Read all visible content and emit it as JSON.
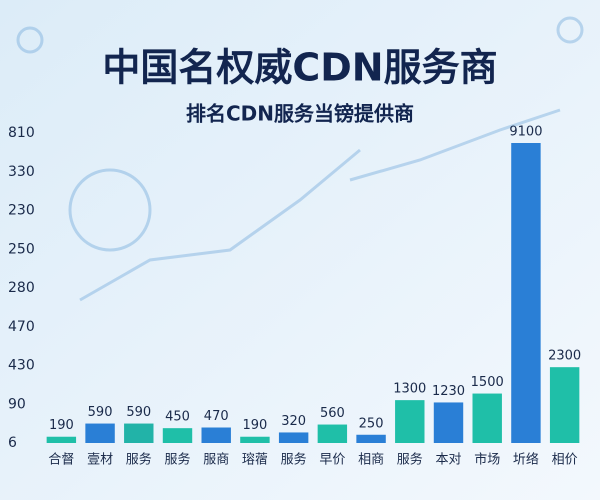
{
  "chart_data": {
    "type": "bar",
    "title": "中国名权威CDN服务商",
    "subtitle": "排名CDN服务当镑提供商",
    "y_axis_labels": [
      "810",
      "330",
      "230",
      "250",
      "280",
      "470",
      "430",
      "90",
      "6"
    ],
    "categories": [
      "合督",
      "壹材",
      "服务",
      "服务",
      "服商",
      "瑢蓿",
      "服务",
      "早价",
      "相商",
      "服务",
      "本对",
      "市场",
      "圻络",
      "相价"
    ],
    "values": [
      190,
      590,
      590,
      450,
      470,
      190,
      320,
      560,
      250,
      1300,
      1230,
      1500,
      9100,
      2300
    ],
    "colors": [
      "#1fbfa8",
      "#2a7fd6",
      "#22b3a8",
      "#1fbfa8",
      "#2a7fd6",
      "#1fbfa8",
      "#2a7fd6",
      "#1fbfa8",
      "#2a7fd6",
      "#1fbfa8",
      "#2a7fd6",
      "#1fbfa8",
      "#2a7fd6",
      "#1fbfa8"
    ]
  }
}
